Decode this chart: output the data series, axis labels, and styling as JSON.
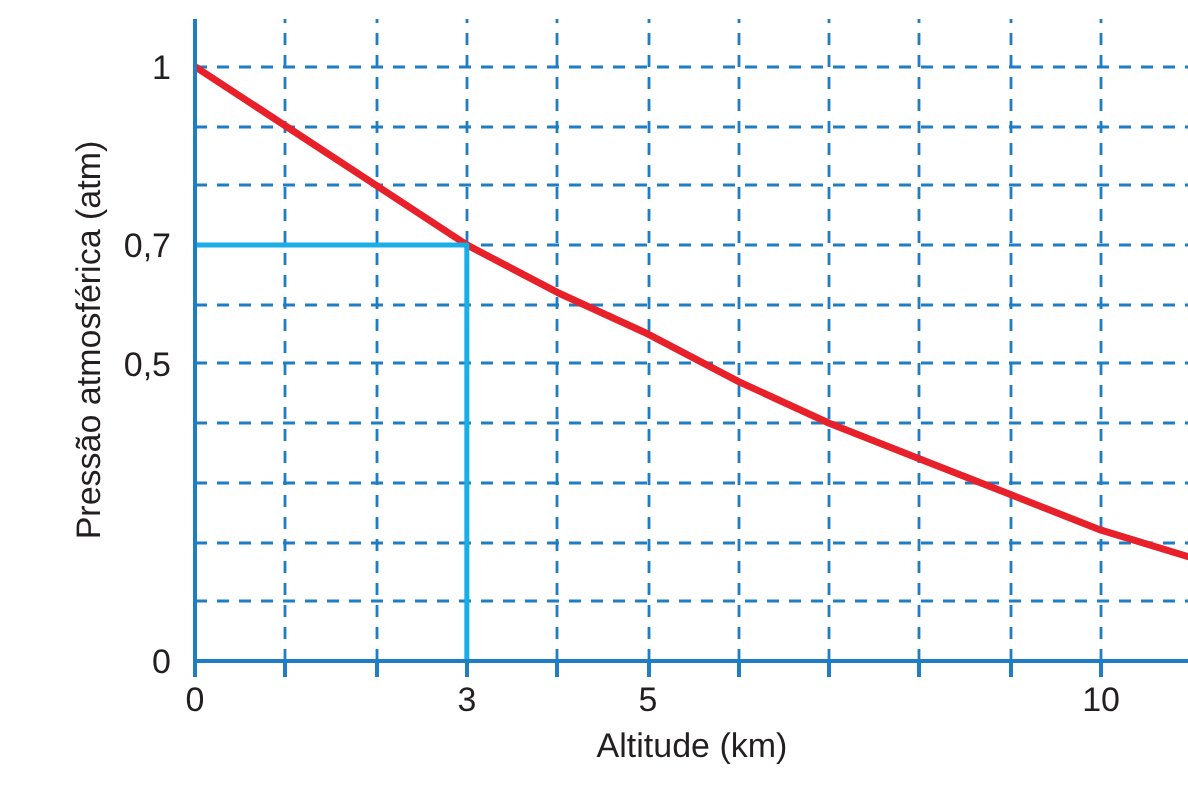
{
  "chart_data": {
    "type": "line",
    "xlabel": "Altitude (km)",
    "ylabel": "Pressão atmosférica (atm)",
    "xlim": [
      0,
      10.97
    ],
    "ylim": [
      0,
      1.08
    ],
    "xticks": [
      0,
      {
        "value": 1,
        "label": null
      },
      {
        "value": 2,
        "label": null
      },
      3,
      {
        "value": 4,
        "label": null
      },
      5,
      {
        "value": 6,
        "label": null
      },
      {
        "value": 7,
        "label": null
      },
      {
        "value": 8,
        "label": null
      },
      {
        "value": 9,
        "label": null
      },
      10
    ],
    "yticks": [
      0,
      {
        "value": 0.1,
        "label": null
      },
      {
        "value": 0.2,
        "label": null
      },
      {
        "value": 0.3,
        "label": null
      },
      {
        "value": 0.4,
        "label": null
      },
      {
        "value": 0.5,
        "label": "0,5"
      },
      {
        "value": 0.6,
        "label": null
      },
      {
        "value": 0.7,
        "label": "0,7"
      },
      {
        "value": 0.8,
        "label": null
      },
      {
        "value": 0.9,
        "label": null
      },
      1
    ],
    "grid": true,
    "line_style": "solid",
    "series": [
      {
        "color": "#e8202a",
        "x": [
          0,
          1,
          2,
          3,
          4,
          5,
          6,
          7,
          8,
          9,
          10,
          10.97
        ],
        "values": [
          1,
          0.9,
          0.8,
          0.7,
          0.62,
          0.55,
          0.47,
          0.4,
          0.34,
          0.28,
          0.22,
          0.175
        ]
      },
      {
        "color": "#19aee6",
        "x": [
          3,
          3,
          0
        ],
        "values": [
          0,
          0.7,
          0.7
        ]
      }
    ]
  }
}
